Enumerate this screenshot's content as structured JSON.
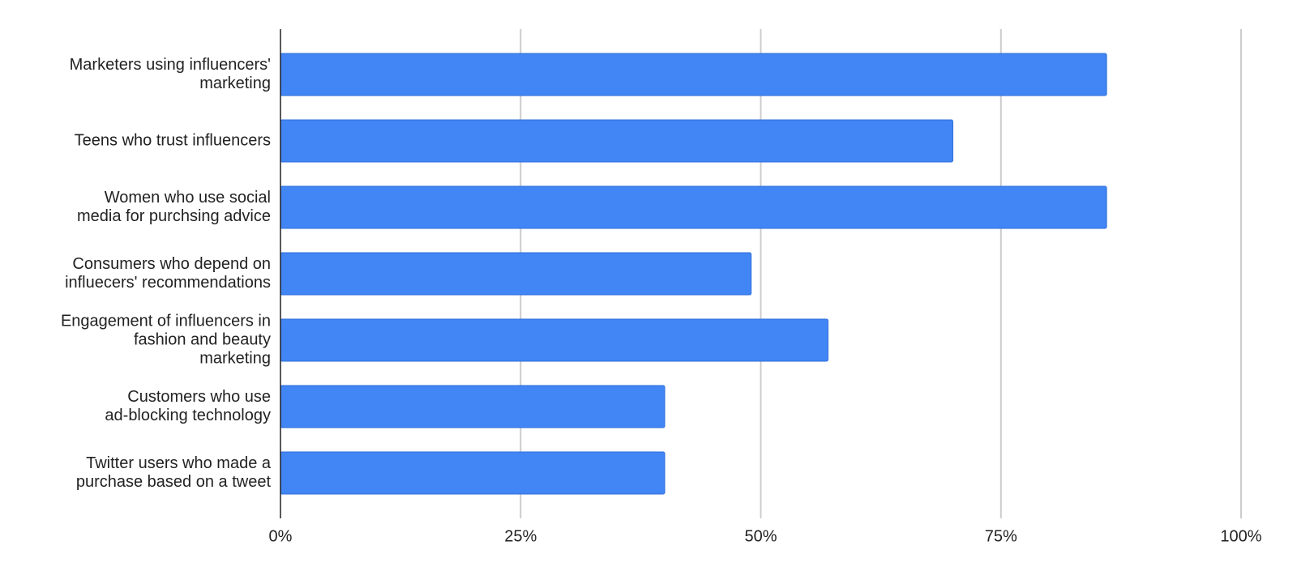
{
  "chart_data": {
    "type": "bar",
    "orientation": "horizontal",
    "categories": [
      "Marketers using influencers'\nmarketing",
      "Teens who trust influencers",
      "Women who use social\nmedia for purchsing advice",
      "Consumers who depend on\ninfluecers' recommendations",
      "Engagement of influencers in\nfashion and beauty\nmarketing",
      "Customers who use\nad-blocking technology",
      "Twitter users who made a\npurchase based on a tweet"
    ],
    "values": [
      86,
      70,
      86,
      49,
      57,
      40,
      40
    ],
    "color": "#4285f4",
    "xlim": [
      0,
      100
    ],
    "xticks": [
      {
        "value": 0,
        "label": "0%"
      },
      {
        "value": 25,
        "label": "25%"
      },
      {
        "value": 50,
        "label": "50%"
      },
      {
        "value": 75,
        "label": "75%"
      },
      {
        "value": 100,
        "label": "100%"
      }
    ],
    "grid": true
  }
}
